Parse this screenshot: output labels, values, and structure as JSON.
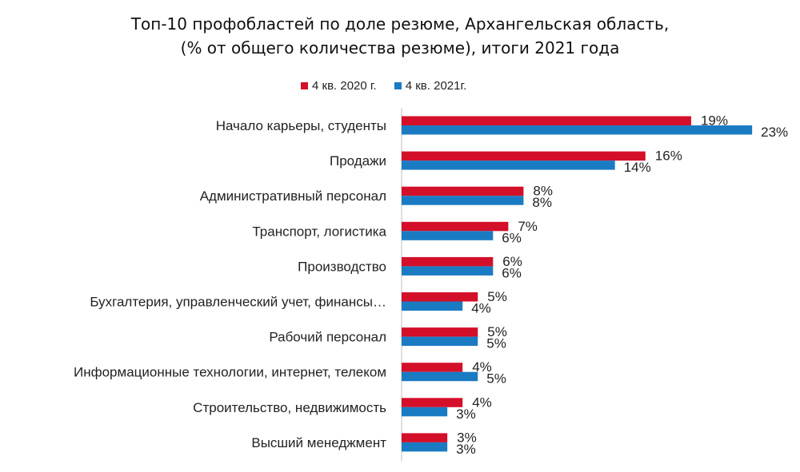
{
  "chart_data": {
    "type": "bar",
    "orientation": "horizontal",
    "title_lines": [
      "Топ-10 профобластей по доле резюме,  Архангельская область,",
      "(% от общего количества резюме), итоги 2021 года"
    ],
    "legend_position": "top",
    "grid": false,
    "xlim": [
      0,
      23
    ],
    "categories": [
      "Начало карьеры, студенты",
      "Продажи",
      "Административный персонал",
      "Транспорт, логистика",
      "Производство",
      "Бухгалтерия, управленческий учет, финансы…",
      "Рабочий персонал",
      "Информационные технологии, интернет, телеком",
      "Строительство, недвижимость",
      "Высший менеджмент"
    ],
    "series": [
      {
        "name": "4 кв. 2020 г.",
        "color": "#d40f2a",
        "values": [
          19,
          16,
          8,
          7,
          6,
          5,
          5,
          4,
          4,
          3
        ],
        "labels": [
          "19%",
          "16%",
          "8%",
          "7%",
          "6%",
          "5%",
          "5%",
          "4%",
          "4%",
          "3%"
        ]
      },
      {
        "name": "4 кв. 2021г.",
        "color": "#1a7bc2",
        "values": [
          23,
          14,
          8,
          6,
          6,
          4,
          5,
          5,
          3,
          3
        ],
        "labels": [
          "23%",
          "14%",
          "8%",
          "6%",
          "6%",
          "4%",
          "5%",
          "5%",
          "3%",
          "3%"
        ]
      }
    ]
  }
}
